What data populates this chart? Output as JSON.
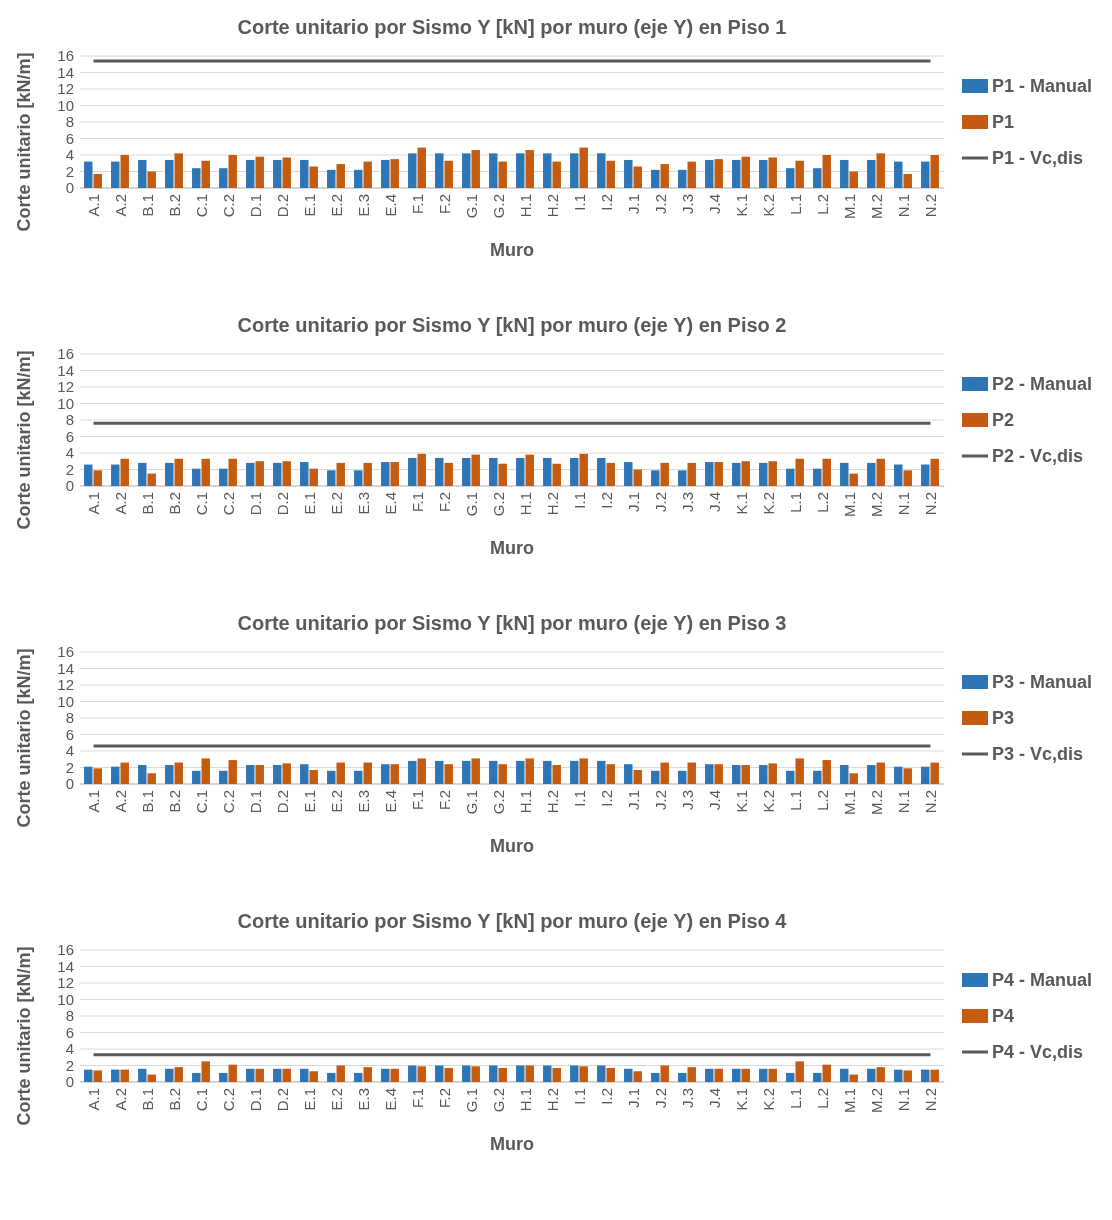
{
  "chart_data": [
    {
      "type": "bar",
      "title": "Corte unitario por Sismo Y [kN] por muro (eje Y) en Piso 1",
      "xlabel": "Muro",
      "ylabel": "Corte unitario [kN/m]",
      "categories": [
        "A.1",
        "A.2",
        "B.1",
        "B.2",
        "C.1",
        "C.2",
        "D.1",
        "D.2",
        "E.1",
        "E.2",
        "E.3",
        "E.4",
        "F.1",
        "F.2",
        "G.1",
        "G.2",
        "H.1",
        "H.2",
        "I.1",
        "I.2",
        "J.1",
        "J.2",
        "J.3",
        "J.4",
        "K.1",
        "K.2",
        "L.1",
        "L.2",
        "M.1",
        "M.2",
        "N.1",
        "N.2"
      ],
      "ylim": [
        0,
        16
      ],
      "yticks": [
        0,
        2,
        4,
        6,
        8,
        10,
        12,
        14,
        16
      ],
      "grid": "y",
      "legend": "right",
      "series": [
        {
          "name": "P1 - Manual",
          "color": "#2e75b6",
          "values": [
            3.2,
            3.2,
            3.4,
            3.4,
            2.4,
            2.4,
            3.4,
            3.4,
            3.4,
            2.2,
            2.2,
            3.4,
            4.2,
            4.2,
            4.2,
            4.2,
            4.2,
            4.2,
            4.2,
            4.2,
            3.4,
            2.2,
            2.2,
            3.4,
            3.4,
            3.4,
            2.4,
            2.4,
            3.4,
            3.4,
            3.2,
            3.2
          ]
        },
        {
          "name": "P1",
          "color": "#c55a11",
          "values": [
            1.7,
            4.0,
            2.0,
            4.2,
            3.3,
            4.0,
            3.8,
            3.7,
            2.6,
            2.9,
            3.2,
            3.5,
            4.9,
            3.3,
            4.6,
            3.2,
            4.6,
            3.2,
            4.9,
            3.3,
            2.6,
            2.9,
            3.2,
            3.5,
            3.8,
            3.7,
            3.3,
            4.0,
            2.0,
            4.2,
            1.7,
            4.0
          ]
        },
        {
          "name": "P1 - Vc,dis",
          "type": "line",
          "color": "#595959",
          "values": [
            15.4,
            15.4,
            15.4,
            15.4,
            15.4,
            15.4,
            15.4,
            15.4,
            15.4,
            15.4,
            15.4,
            15.4,
            15.4,
            15.4,
            15.4,
            15.4,
            15.4,
            15.4,
            15.4,
            15.4,
            15.4,
            15.4,
            15.4,
            15.4,
            15.4,
            15.4,
            15.4,
            15.4,
            15.4,
            15.4,
            15.4,
            15.4
          ]
        }
      ]
    },
    {
      "type": "bar",
      "title": "Corte unitario por Sismo Y [kN] por muro (eje Y) en Piso 2",
      "xlabel": "Muro",
      "ylabel": "Corte unitario [kN/m]",
      "categories": [
        "A.1",
        "A.2",
        "B.1",
        "B.2",
        "C.1",
        "C.2",
        "D.1",
        "D.2",
        "E.1",
        "E.2",
        "E.3",
        "E.4",
        "F.1",
        "F.2",
        "G.1",
        "G.2",
        "H.1",
        "H.2",
        "I.1",
        "I.2",
        "J.1",
        "J.2",
        "J.3",
        "J.4",
        "K.1",
        "K.2",
        "L.1",
        "L.2",
        "M.1",
        "M.2",
        "N.1",
        "N.2"
      ],
      "ylim": [
        0,
        16
      ],
      "yticks": [
        0,
        2,
        4,
        6,
        8,
        10,
        12,
        14,
        16
      ],
      "grid": "y",
      "legend": "right",
      "series": [
        {
          "name": "P2 - Manual",
          "color": "#2e75b6",
          "values": [
            2.6,
            2.6,
            2.8,
            2.8,
            2.1,
            2.1,
            2.8,
            2.8,
            2.9,
            1.9,
            1.9,
            2.9,
            3.4,
            3.4,
            3.4,
            3.4,
            3.4,
            3.4,
            3.4,
            3.4,
            2.9,
            1.9,
            1.9,
            2.9,
            2.8,
            2.8,
            2.1,
            2.1,
            2.8,
            2.8,
            2.6,
            2.6
          ]
        },
        {
          "name": "P2",
          "color": "#c55a11",
          "values": [
            1.9,
            3.3,
            1.5,
            3.3,
            3.3,
            3.3,
            3.0,
            3.0,
            2.1,
            2.8,
            2.8,
            2.9,
            3.9,
            2.8,
            3.8,
            2.7,
            3.8,
            2.7,
            3.9,
            2.8,
            2.0,
            2.8,
            2.8,
            2.9,
            3.0,
            3.0,
            3.3,
            3.3,
            1.5,
            3.3,
            1.9,
            3.3
          ]
        },
        {
          "name": "P2 - Vc,dis",
          "type": "line",
          "color": "#595959",
          "values": [
            7.6,
            7.6,
            7.6,
            7.6,
            7.6,
            7.6,
            7.6,
            7.6,
            7.6,
            7.6,
            7.6,
            7.6,
            7.6,
            7.6,
            7.6,
            7.6,
            7.6,
            7.6,
            7.6,
            7.6,
            7.6,
            7.6,
            7.6,
            7.6,
            7.6,
            7.6,
            7.6,
            7.6,
            7.6,
            7.6,
            7.6,
            7.6
          ]
        }
      ]
    },
    {
      "type": "bar",
      "title": "Corte unitario por Sismo Y [kN] por muro (eje Y) en Piso 3",
      "xlabel": "Muro",
      "ylabel": "Corte unitario [kN/m]",
      "categories": [
        "A.1",
        "A.2",
        "B.1",
        "B.2",
        "C.1",
        "C.2",
        "D.1",
        "D.2",
        "E.1",
        "E.2",
        "E.3",
        "E.4",
        "F.1",
        "F.2",
        "G.1",
        "G.2",
        "H.1",
        "H.2",
        "I.1",
        "I.2",
        "J.1",
        "J.2",
        "J.3",
        "J.4",
        "K.1",
        "K.2",
        "L.1",
        "L.2",
        "M.1",
        "M.2",
        "N.1",
        "N.2"
      ],
      "ylim": [
        0,
        16
      ],
      "yticks": [
        0,
        2,
        4,
        6,
        8,
        10,
        12,
        14,
        16
      ],
      "grid": "y",
      "legend": "right",
      "series": [
        {
          "name": "P3 - Manual",
          "color": "#2e75b6",
          "values": [
            2.1,
            2.1,
            2.3,
            2.3,
            1.6,
            1.6,
            2.3,
            2.3,
            2.4,
            1.6,
            1.6,
            2.4,
            2.8,
            2.8,
            2.8,
            2.8,
            2.8,
            2.8,
            2.8,
            2.8,
            2.4,
            1.6,
            1.6,
            2.4,
            2.3,
            2.3,
            1.6,
            1.6,
            2.3,
            2.3,
            2.1,
            2.1
          ]
        },
        {
          "name": "P3",
          "color": "#c55a11",
          "values": [
            1.9,
            2.6,
            1.3,
            2.6,
            3.1,
            2.9,
            2.3,
            2.5,
            1.7,
            2.6,
            2.6,
            2.4,
            3.1,
            2.4,
            3.1,
            2.4,
            3.1,
            2.3,
            3.1,
            2.4,
            1.7,
            2.6,
            2.6,
            2.4,
            2.3,
            2.5,
            3.1,
            2.9,
            1.3,
            2.6,
            1.9,
            2.6
          ]
        },
        {
          "name": "P3 - Vc,dis",
          "type": "line",
          "color": "#595959",
          "values": [
            4.6,
            4.6,
            4.6,
            4.6,
            4.6,
            4.6,
            4.6,
            4.6,
            4.6,
            4.6,
            4.6,
            4.6,
            4.6,
            4.6,
            4.6,
            4.6,
            4.6,
            4.6,
            4.6,
            4.6,
            4.6,
            4.6,
            4.6,
            4.6,
            4.6,
            4.6,
            4.6,
            4.6,
            4.6,
            4.6,
            4.6,
            4.6
          ]
        }
      ]
    },
    {
      "type": "bar",
      "title": "Corte unitario por Sismo Y [kN] por muro (eje Y) en Piso 4",
      "xlabel": "Muro",
      "ylabel": "Corte unitario [kN/m]",
      "categories": [
        "A.1",
        "A.2",
        "B.1",
        "B.2",
        "C.1",
        "C.2",
        "D.1",
        "D.2",
        "E.1",
        "E.2",
        "E.3",
        "E.4",
        "F.1",
        "F.2",
        "G.1",
        "G.2",
        "H.1",
        "H.2",
        "I.1",
        "I.2",
        "J.1",
        "J.2",
        "J.3",
        "J.4",
        "K.1",
        "K.2",
        "L.1",
        "L.2",
        "M.1",
        "M.2",
        "N.1",
        "N.2"
      ],
      "ylim": [
        0,
        16
      ],
      "yticks": [
        0,
        2,
        4,
        6,
        8,
        10,
        12,
        14,
        16
      ],
      "grid": "y",
      "legend": "right",
      "series": [
        {
          "name": "P4 - Manual",
          "color": "#2e75b6",
          "values": [
            1.5,
            1.5,
            1.6,
            1.6,
            1.1,
            1.1,
            1.6,
            1.6,
            1.6,
            1.1,
            1.1,
            1.6,
            2.0,
            2.0,
            2.0,
            2.0,
            2.0,
            2.0,
            2.0,
            2.0,
            1.6,
            1.1,
            1.1,
            1.6,
            1.6,
            1.6,
            1.1,
            1.1,
            1.6,
            1.6,
            1.5,
            1.5
          ]
        },
        {
          "name": "P4",
          "color": "#c55a11",
          "values": [
            1.4,
            1.5,
            0.9,
            1.8,
            2.5,
            2.1,
            1.6,
            1.6,
            1.3,
            2.0,
            1.8,
            1.6,
            1.9,
            1.7,
            1.9,
            1.7,
            2.0,
            1.7,
            1.9,
            1.7,
            1.3,
            2.0,
            1.8,
            1.6,
            1.6,
            1.6,
            2.5,
            2.1,
            0.9,
            1.8,
            1.4,
            1.5
          ]
        },
        {
          "name": "P4 - Vc,dis",
          "type": "line",
          "color": "#595959",
          "values": [
            3.3,
            3.3,
            3.3,
            3.3,
            3.3,
            3.3,
            3.3,
            3.3,
            3.3,
            3.3,
            3.3,
            3.3,
            3.3,
            3.3,
            3.3,
            3.3,
            3.3,
            3.3,
            3.3,
            3.3,
            3.3,
            3.3,
            3.3,
            3.3,
            3.3,
            3.3,
            3.3,
            3.3,
            3.3,
            3.3,
            3.3,
            3.3
          ]
        }
      ]
    }
  ]
}
